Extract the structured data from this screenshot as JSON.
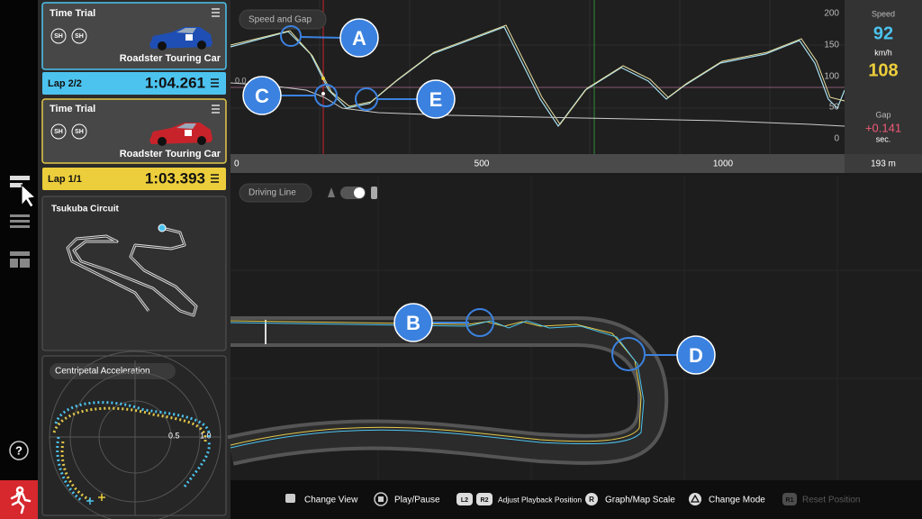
{
  "cards": [
    {
      "mode": "Time Trial",
      "badges": [
        "SH",
        "SH"
      ],
      "car": "Roadster Touring Car",
      "lap": "Lap 2/2",
      "time": "1:04.261"
    },
    {
      "mode": "Time Trial",
      "badges": [
        "SH",
        "SH"
      ],
      "car": "Roadster Touring Car",
      "lap": "Lap 1/1",
      "time": "1:03.393"
    }
  ],
  "map_card": {
    "title": "Tsukuba Circuit"
  },
  "g_card": {
    "title": "Centripetal Acceleration",
    "rings": [
      "0.5",
      "1.0"
    ]
  },
  "graph": {
    "title": "Speed and Gap",
    "speed_ticks": [
      "200",
      "150",
      "100",
      "50",
      "0"
    ],
    "gap_tick": "0.0",
    "distance_ticks": [
      "0",
      "500",
      "1000"
    ]
  },
  "readout": {
    "speed_label": "Speed",
    "speed_a": "92",
    "speed_unit": "km/h",
    "speed_b": "108",
    "gap_label": "Gap",
    "gap": "+0.141",
    "gap_unit": "sec.",
    "distance": "193 m"
  },
  "driving_line": {
    "title": "Driving Line"
  },
  "callouts": [
    "A",
    "B",
    "C",
    "D",
    "E"
  ],
  "help": "?",
  "controls": [
    {
      "label": "Change View"
    },
    {
      "label": "Play/Pause"
    },
    {
      "buttons": [
        "L2",
        "R2"
      ],
      "label": "Adjust Playback Position"
    },
    {
      "button": "R",
      "label": "Graph/Map Scale"
    },
    {
      "label": "Change Mode"
    },
    {
      "button": "R1",
      "label": "Reset Position",
      "disabled": true
    }
  ]
}
